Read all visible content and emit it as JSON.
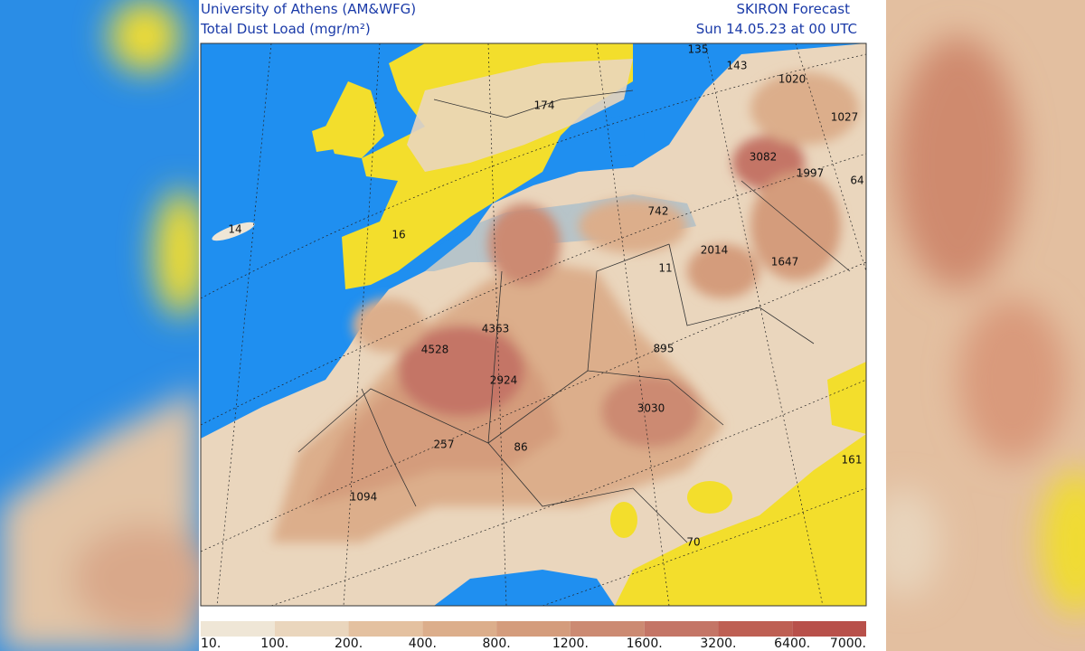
{
  "header": {
    "institution": "University of Athens (AM&WFG)",
    "field": "Total Dust Load (mgr/m²)",
    "model": "SKIRON Forecast",
    "valid_time": "Sun 14.05.23 at 00 UTC"
  },
  "map_labels": [
    "135",
    "143",
    "1020",
    "1027",
    "174",
    "3082",
    "1997",
    "64",
    "742",
    "14",
    "16",
    "2014",
    "11",
    "1647",
    "4363",
    "4528",
    "895",
    "2924",
    "3030",
    "257",
    "86",
    "161",
    "1094",
    "70"
  ],
  "legend": {
    "labels": [
      "10.",
      "100.",
      "200.",
      "400.",
      "800.",
      "1200.",
      "1600.",
      "3200.",
      "6400.",
      "7000."
    ],
    "colors": [
      "#efe6d6",
      "#ead6bd",
      "#e4c1a0",
      "#dcae8b",
      "#d49c7c",
      "#cc8a72",
      "#c47566",
      "#be5f53",
      "#b8504a"
    ]
  }
}
